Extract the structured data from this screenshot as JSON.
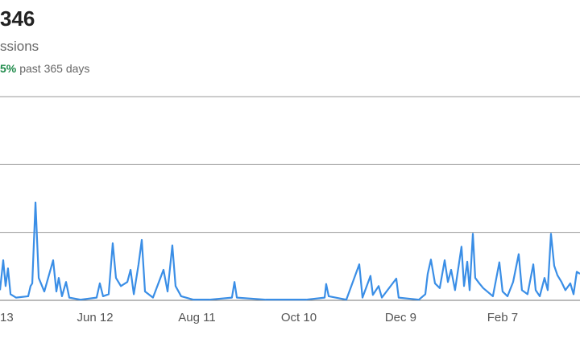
{
  "header": {
    "value": "346",
    "label": "ssions",
    "change": "5%",
    "period": "past 365 days"
  },
  "chart_data": {
    "type": "line",
    "x": [
      4.0,
      5.9,
      7.3,
      8.7,
      10.2,
      13.5,
      20.6,
      22.0,
      23.0,
      24.9,
      26.8,
      30.1,
      35.3,
      37.2,
      38.6,
      40.5,
      42.9,
      44.8,
      51.4,
      60.9,
      62.8,
      64.7,
      68.0,
      70.4,
      72.3,
      75.2,
      79.0,
      80.9,
      82.8,
      85.6,
      87.5,
      89.4,
      94.1,
      100.3,
      102.7,
      105.5,
      107.4,
      110.7,
      117.9,
      127.3,
      140.6,
      142.1,
      143.5,
      160.6,
      184.3,
      195.2,
      196.1,
      197.6,
      208.0,
      215.6,
      217.5,
      222.2,
      223.6,
      227.0,
      228.9,
      237.4,
      238.8,
      250.7,
      254.5,
      255.9,
      257.8,
      260.2,
      263.0,
      265.9,
      267.8,
      269.7,
      272.0,
      275.8,
      277.3,
      279.2,
      280.6,
      282.5,
      283.9,
      286.3,
      288.6,
      291.0,
      294.3,
      298.1,
      300.0,
      302.9,
      306.2,
      309.5,
      311.4,
      314.7,
      318.1,
      319.5,
      321.9,
      324.7,
      326.6,
      328.5,
      330.4,
      332.3,
      334.7,
      337.0,
      339.9,
      341.8,
      343.7,
      345.6
    ],
    "series": [
      {
        "color": "#3a8ee6",
        "values": [
          0.15,
          0.59,
          0.21,
          0.47,
          0.09,
          0.04,
          0.06,
          0.21,
          0.25,
          1.44,
          0.33,
          0.13,
          0.59,
          0.13,
          0.33,
          0.06,
          0.27,
          0.04,
          0.01,
          0.04,
          0.25,
          0.06,
          0.09,
          0.84,
          0.33,
          0.21,
          0.27,
          0.45,
          0.09,
          0.53,
          0.89,
          0.13,
          0.04,
          0.45,
          0.13,
          0.81,
          0.21,
          0.06,
          0.01,
          0.01,
          0.04,
          0.27,
          0.04,
          0.01,
          0.01,
          0.04,
          0.24,
          0.06,
          0.01,
          0.53,
          0.04,
          0.36,
          0.08,
          0.21,
          0.04,
          0.32,
          0.04,
          0.01,
          0.09,
          0.39,
          0.6,
          0.25,
          0.18,
          0.59,
          0.27,
          0.45,
          0.15,
          0.79,
          0.21,
          0.57,
          0.15,
          0.98,
          0.33,
          0.25,
          0.18,
          0.13,
          0.06,
          0.56,
          0.13,
          0.06,
          0.27,
          0.68,
          0.15,
          0.09,
          0.53,
          0.15,
          0.06,
          0.33,
          0.15,
          0.98,
          0.51,
          0.37,
          0.27,
          0.15,
          0.25,
          0.09,
          0.42,
          0.39
        ]
      }
    ],
    "xlim": [
      4,
      345.6
    ],
    "ylim": [
      0,
      3
    ],
    "yticks": [
      0,
      1,
      2,
      3
    ],
    "xticks": [
      {
        "value": 0,
        "label": "13"
      },
      {
        "value": 60,
        "label": "Jun 12"
      },
      {
        "value": 120,
        "label": "Aug 11"
      },
      {
        "value": 180,
        "label": "Oct 10"
      },
      {
        "value": 240,
        "label": "Dec 9"
      },
      {
        "value": 300,
        "label": "Feb 7"
      }
    ],
    "grid": true
  }
}
